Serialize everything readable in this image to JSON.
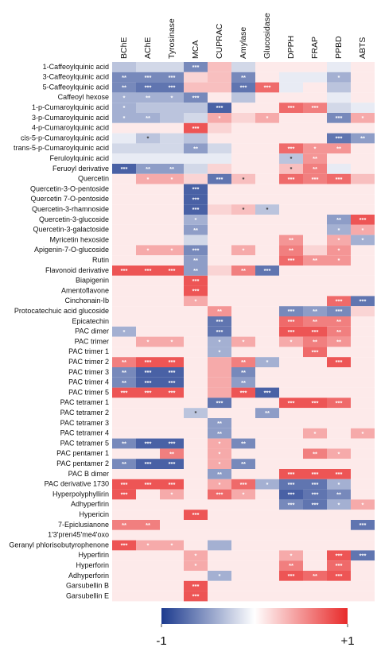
{
  "chart_data": {
    "type": "heatmap",
    "x": [
      "BChE",
      "AChE",
      "Tyrosinase",
      "MCA",
      "CUPRAC",
      "Amylase",
      "Glucosidase",
      "DPPH",
      "FRAP",
      "PPBD",
      "ABTS"
    ],
    "y": [
      "1-Caffeoylquinic acid",
      "3-Caffeoylquinic acid",
      "5-Caffeoylquinic acid",
      "Caffeoyl hexose",
      "1-p-Cumaroylquinic acid",
      "3-p-Cumaroylquinic acid",
      "4-p-Cumaroylquinic acid",
      "cis-5-p-Cumaroylquinic acid",
      "trans-5-p-Cumaroylquinic acid",
      "Feruloylquinic acid",
      "Feruoyl derivative",
      "Quercetin",
      "Quercetin-3-O-pentoside",
      "Quercetin 7-O-pentoside",
      "Quercetin-3-rhamnoside",
      "Quercetin-3-glucoside",
      "Quercetin-3-galactoside",
      "Myricetin hexoside",
      "Apigenin-7-O-glucoside",
      "Rutin",
      "Flavonoid derivative",
      "Biapigenin",
      "Amentoflavone",
      "Cinchonain-Ib",
      "Protocatechuic acid glucoside",
      "Epicatechin",
      "PAC dimer",
      "PAC trimer",
      "PAC trimer 1",
      "PAC trimer 2",
      "PAC trimer 3",
      "PAC trimer 4",
      "PAC trimer 5",
      "PAC tetramer 1",
      "PAC tetramer 2",
      "PAC tetramer 3",
      "PAC tetramer 4",
      "PAC tetramer 5",
      "PAC pentamer 1",
      "PAC pentamer 2",
      "PAC B dimer",
      "PAC derivative 1730",
      "Hyperpolyphyllirin",
      "Adhyperfirin",
      "Hypericin",
      "7-Epiclusianone",
      "1'3'pren45'me4'oxo",
      "Geranyl phlorisobutyrophenone",
      "Hyperfirin",
      "Hyperforin",
      "Adhyperforin",
      "Garsubellin B",
      "Garsubellin E"
    ],
    "values": [
      [
        -0.3,
        -0.2,
        -0.2,
        -0.6,
        0.3,
        -0.2,
        0.1,
        0.1,
        0.1,
        -0.1,
        0.1
      ],
      [
        -0.6,
        -0.6,
        -0.6,
        0.2,
        0.3,
        -0.6,
        0.1,
        -0.1,
        -0.1,
        -0.4,
        0.1
      ],
      [
        -0.6,
        -0.7,
        -0.7,
        0.3,
        0.3,
        -0.7,
        0.7,
        -0.1,
        0.1,
        -0.3,
        0.1
      ],
      [
        -0.4,
        -0.4,
        -0.4,
        -0.6,
        0.1,
        -0.3,
        0.1,
        0.1,
        0.1,
        -0.1,
        0.1
      ],
      [
        -0.4,
        -0.3,
        -0.3,
        -0.3,
        -0.8,
        0.1,
        0.1,
        0.7,
        0.6,
        -0.2,
        -0.1
      ],
      [
        -0.4,
        -0.4,
        -0.3,
        -0.2,
        0.4,
        0.2,
        0.4,
        0.1,
        0.1,
        -0.6,
        0.4
      ],
      [
        0.1,
        0.1,
        0.1,
        0.8,
        0.2,
        0.1,
        0.1,
        0.1,
        0.1,
        0.1,
        0.1
      ],
      [
        -0.1,
        -0.3,
        -0.2,
        -0.3,
        0.1,
        0.1,
        0.1,
        0.1,
        0.1,
        -0.7,
        -0.5
      ],
      [
        -0.2,
        -0.2,
        -0.2,
        -0.5,
        -0.2,
        0.1,
        0.1,
        0.7,
        0.5,
        0.5,
        0.1
      ],
      [
        -0.1,
        -0.1,
        -0.1,
        -0.1,
        -0.1,
        0.1,
        0.1,
        -0.3,
        0.5,
        0.1,
        0.1
      ],
      [
        -0.8,
        -0.5,
        -0.5,
        -0.2,
        0.2,
        0.1,
        0.1,
        0.3,
        0.6,
        -0.1,
        0.1
      ],
      [
        0.1,
        0.4,
        0.4,
        0.2,
        -0.7,
        0.3,
        0.1,
        0.7,
        0.6,
        0.7,
        0.3
      ],
      [
        0.1,
        0.1,
        0.1,
        -0.8,
        0.1,
        0.1,
        0.1,
        0.1,
        0.1,
        0.1,
        0.1
      ],
      [
        0.1,
        0.1,
        0.1,
        -0.8,
        0.1,
        0.1,
        0.1,
        0.1,
        0.1,
        0.1,
        0.1
      ],
      [
        0.1,
        0.1,
        0.1,
        -0.8,
        0.2,
        0.3,
        -0.3,
        0.1,
        0.1,
        0.1,
        0.1
      ],
      [
        0.1,
        0.1,
        0.1,
        -0.4,
        0.1,
        0.1,
        0.1,
        0.1,
        0.1,
        -0.5,
        0.8
      ],
      [
        0.1,
        0.1,
        0.1,
        -0.5,
        0.1,
        0.1,
        0.1,
        0.1,
        0.1,
        -0.4,
        0.4
      ],
      [
        0.1,
        0.1,
        0.1,
        -0.2,
        0.1,
        0.1,
        0.1,
        0.5,
        0.1,
        0.4,
        -0.4
      ],
      [
        0.1,
        0.4,
        0.4,
        -0.6,
        0.1,
        0.4,
        0.1,
        0.6,
        0.2,
        0.5,
        0.1
      ],
      [
        0.1,
        0.1,
        0.1,
        -0.5,
        0.1,
        0.1,
        0.1,
        0.7,
        0.5,
        0.5,
        0.1
      ],
      [
        0.8,
        0.8,
        0.8,
        -0.5,
        0.2,
        0.6,
        -0.7,
        0.1,
        0.1,
        0.1,
        0.1
      ],
      [
        0.1,
        0.1,
        0.1,
        0.8,
        0.1,
        0.1,
        0.1,
        0.1,
        0.1,
        0.1,
        0.1
      ],
      [
        0.1,
        0.1,
        0.1,
        0.8,
        0.1,
        0.1,
        0.1,
        0.1,
        0.1,
        0.1,
        0.1
      ],
      [
        0.1,
        0.1,
        0.1,
        0.4,
        0.1,
        0.1,
        0.1,
        0.1,
        0.1,
        0.7,
        -0.7
      ],
      [
        0.1,
        0.1,
        0.1,
        0.1,
        0.5,
        0.1,
        0.1,
        -0.6,
        -0.5,
        -0.6,
        0.2
      ],
      [
        0.1,
        0.1,
        0.1,
        0.1,
        -0.7,
        0.1,
        0.1,
        0.7,
        0.6,
        0.6,
        0.1
      ],
      [
        -0.4,
        0.1,
        0.1,
        0.1,
        -0.7,
        0.1,
        0.1,
        0.8,
        0.8,
        0.6,
        0.1
      ],
      [
        0.1,
        0.4,
        0.4,
        0.1,
        -0.4,
        0.4,
        0.1,
        0.4,
        0.6,
        0.5,
        0.1
      ],
      [
        0.1,
        0.1,
        0.1,
        0.1,
        -0.4,
        0.1,
        0.1,
        0.1,
        0.7,
        0.1,
        0.1
      ],
      [
        0.6,
        0.8,
        0.8,
        0.1,
        0.4,
        0.6,
        -0.4,
        0.1,
        0.1,
        0.8,
        0.1
      ],
      [
        -0.6,
        -0.8,
        -0.8,
        0.1,
        0.4,
        -0.6,
        0.1,
        0.1,
        0.1,
        0.1,
        0.1
      ],
      [
        -0.6,
        -0.8,
        -0.8,
        0.1,
        0.4,
        -0.5,
        0.1,
        0.1,
        0.1,
        0.1,
        0.1
      ],
      [
        0.8,
        0.8,
        0.8,
        0.1,
        0.4,
        0.8,
        -0.8,
        0.1,
        0.1,
        0.1,
        0.1
      ],
      [
        0.1,
        0.1,
        0.1,
        0.1,
        -0.7,
        0.1,
        0.1,
        0.8,
        0.8,
        0.7,
        0.1
      ],
      [
        0.1,
        0.1,
        0.1,
        -0.3,
        0.1,
        0.1,
        -0.5,
        0.1,
        0.1,
        0.1,
        0.1
      ],
      [
        0.1,
        0.1,
        0.1,
        0.1,
        -0.5,
        0.1,
        0.1,
        0.1,
        0.1,
        0.1,
        0.1
      ],
      [
        0.1,
        0.1,
        0.1,
        0.1,
        -0.5,
        0.1,
        0.1,
        0.1,
        0.4,
        0.1,
        0.4
      ],
      [
        -0.6,
        -0.8,
        -0.8,
        0.1,
        0.4,
        -0.6,
        0.1,
        0.1,
        0.1,
        0.1,
        0.1
      ],
      [
        0.1,
        0.1,
        0.6,
        0.1,
        0.4,
        0.1,
        0.1,
        0.1,
        0.6,
        0.4,
        0.1
      ],
      [
        -0.6,
        -0.8,
        -0.8,
        0.1,
        0.4,
        -0.6,
        0.1,
        0.1,
        0.1,
        0.1,
        0.1
      ],
      [
        0.1,
        0.1,
        0.1,
        0.1,
        -0.5,
        0.1,
        0.1,
        0.8,
        0.8,
        0.8,
        0.1
      ],
      [
        0.8,
        0.8,
        0.8,
        0.1,
        0.4,
        0.7,
        -0.4,
        -0.7,
        -0.7,
        -0.4,
        0.1
      ],
      [
        0.8,
        0.1,
        0.4,
        0.1,
        0.7,
        0.4,
        0.1,
        -0.8,
        -0.7,
        -0.6,
        0.1
      ],
      [
        0.1,
        0.1,
        0.1,
        0.1,
        0.1,
        0.1,
        0.1,
        -0.6,
        -0.7,
        -0.4,
        0.4
      ],
      [
        0.1,
        0.1,
        0.1,
        0.8,
        0.1,
        0.1,
        0.1,
        0.1,
        0.1,
        0.1,
        0.1
      ],
      [
        0.6,
        0.6,
        0.1,
        0.1,
        0.1,
        0.1,
        0.1,
        0.1,
        0.1,
        0.1,
        -0.7
      ],
      [
        0.1,
        0.1,
        0.1,
        0.1,
        0.1,
        0.1,
        0.1,
        0.1,
        0.1,
        0.1,
        0.1
      ],
      [
        0.8,
        0.4,
        0.4,
        0.1,
        -0.4,
        0.1,
        0.1,
        0.1,
        0.1,
        0.1,
        0.1
      ],
      [
        0.1,
        0.1,
        0.1,
        0.4,
        0.1,
        0.1,
        0.1,
        0.4,
        0.1,
        0.8,
        -0.7
      ],
      [
        0.1,
        0.1,
        0.1,
        0.4,
        0.1,
        0.1,
        0.1,
        0.6,
        0.1,
        0.7,
        0.1
      ],
      [
        0.1,
        0.1,
        0.1,
        0.1,
        -0.4,
        0.1,
        0.1,
        0.8,
        0.7,
        0.8,
        0.1
      ],
      [
        0.1,
        0.1,
        0.1,
        0.8,
        0.1,
        0.1,
        0.1,
        0.1,
        0.1,
        0.1,
        0.1
      ],
      [
        0.1,
        0.1,
        0.1,
        0.8,
        0.1,
        0.1,
        0.1,
        0.1,
        0.1,
        0.1,
        0.1
      ]
    ],
    "significance": [
      [
        null,
        null,
        null,
        "***",
        null,
        null,
        null,
        null,
        null,
        null,
        null
      ],
      [
        "**",
        "***",
        "***",
        null,
        null,
        "**",
        null,
        null,
        null,
        "*",
        null
      ],
      [
        "**",
        "***",
        "***",
        null,
        null,
        "***",
        "***",
        null,
        null,
        null,
        null
      ],
      [
        "*",
        "**",
        "*",
        "***",
        null,
        null,
        null,
        null,
        null,
        null,
        null
      ],
      [
        "*",
        null,
        null,
        null,
        "***",
        null,
        null,
        "***",
        "***",
        null,
        null
      ],
      [
        "*",
        "**",
        null,
        null,
        "*",
        null,
        "*",
        null,
        null,
        "***",
        "*"
      ],
      [
        null,
        null,
        null,
        "***",
        null,
        null,
        null,
        null,
        null,
        null,
        null
      ],
      [
        null,
        "*",
        null,
        null,
        null,
        null,
        null,
        null,
        null,
        "***",
        "**"
      ],
      [
        null,
        null,
        null,
        "**",
        null,
        null,
        null,
        "***",
        "*",
        "**",
        null
      ],
      [
        null,
        null,
        null,
        null,
        null,
        null,
        null,
        "*",
        "**",
        null,
        null
      ],
      [
        "***",
        "**",
        "**",
        null,
        null,
        null,
        null,
        "*",
        "**",
        null,
        null
      ],
      [
        null,
        "*",
        "*",
        null,
        "***",
        "*",
        null,
        "***",
        "***",
        "***",
        null
      ],
      [
        null,
        null,
        null,
        "***",
        null,
        null,
        null,
        null,
        null,
        null,
        null
      ],
      [
        null,
        null,
        null,
        "***",
        null,
        null,
        null,
        null,
        null,
        null,
        null
      ],
      [
        null,
        null,
        null,
        "***",
        null,
        "*",
        "*",
        null,
        null,
        null,
        null
      ],
      [
        null,
        null,
        null,
        "*",
        null,
        null,
        null,
        null,
        null,
        "**",
        "***"
      ],
      [
        null,
        null,
        null,
        "**",
        null,
        null,
        null,
        null,
        null,
        "*",
        "*"
      ],
      [
        null,
        null,
        null,
        null,
        null,
        null,
        null,
        "**",
        null,
        "*",
        "*"
      ],
      [
        null,
        "*",
        "*",
        "***",
        null,
        "*",
        null,
        "**",
        null,
        "*",
        null
      ],
      [
        null,
        null,
        null,
        "**",
        null,
        null,
        null,
        "***",
        "**",
        "*",
        null
      ],
      [
        "***",
        "***",
        "***",
        "**",
        null,
        "**",
        "***",
        null,
        null,
        null,
        null
      ],
      [
        null,
        null,
        null,
        "***",
        null,
        null,
        null,
        null,
        null,
        null,
        null
      ],
      [
        null,
        null,
        null,
        "***",
        null,
        null,
        null,
        null,
        null,
        null,
        null
      ],
      [
        null,
        null,
        null,
        "*",
        null,
        null,
        null,
        null,
        null,
        "***",
        "***"
      ],
      [
        null,
        null,
        null,
        null,
        "**",
        null,
        null,
        "***",
        "**",
        "***",
        null
      ],
      [
        null,
        null,
        null,
        null,
        "***",
        null,
        null,
        "***",
        "**",
        "**",
        null
      ],
      [
        "*",
        null,
        null,
        null,
        "***",
        null,
        null,
        "***",
        "***",
        "**",
        null
      ],
      [
        null,
        "*",
        "*",
        null,
        "*",
        "*",
        null,
        "*",
        "**",
        "**",
        null
      ],
      [
        null,
        null,
        null,
        null,
        "*",
        null,
        null,
        null,
        "***",
        null,
        null
      ],
      [
        "**",
        "***",
        "***",
        null,
        null,
        "**",
        "*",
        null,
        null,
        "***",
        null
      ],
      [
        "**",
        "***",
        "***",
        null,
        null,
        "**",
        null,
        null,
        null,
        null,
        null
      ],
      [
        "**",
        "***",
        "***",
        null,
        null,
        "**",
        null,
        null,
        null,
        null,
        null
      ],
      [
        "***",
        "***",
        "***",
        null,
        null,
        "***",
        "***",
        null,
        null,
        null,
        null
      ],
      [
        null,
        null,
        null,
        null,
        "***",
        null,
        null,
        "***",
        "***",
        "***",
        null
      ],
      [
        null,
        null,
        null,
        "*",
        null,
        null,
        "**",
        null,
        null,
        null,
        null
      ],
      [
        null,
        null,
        null,
        null,
        "**",
        null,
        null,
        null,
        null,
        null,
        null
      ],
      [
        null,
        null,
        null,
        null,
        "**",
        null,
        null,
        null,
        "*",
        null,
        "*"
      ],
      [
        "**",
        "***",
        "***",
        null,
        "*",
        "**",
        null,
        null,
        null,
        null,
        null
      ],
      [
        null,
        null,
        "**",
        null,
        "*",
        null,
        null,
        null,
        "**",
        "*",
        null
      ],
      [
        "**",
        "***",
        "***",
        null,
        "*",
        "**",
        null,
        null,
        null,
        null,
        null
      ],
      [
        null,
        null,
        null,
        null,
        "**",
        null,
        null,
        "***",
        "***",
        "***",
        null
      ],
      [
        "***",
        "***",
        "***",
        null,
        "*",
        "***",
        "*",
        "***",
        "***",
        "*",
        null
      ],
      [
        "***",
        null,
        "*",
        null,
        "***",
        "*",
        null,
        "***",
        "***",
        "**",
        null
      ],
      [
        null,
        null,
        null,
        null,
        null,
        null,
        null,
        "***",
        "***",
        "*",
        "*"
      ],
      [
        null,
        null,
        null,
        "***",
        null,
        null,
        null,
        null,
        null,
        null,
        null
      ],
      [
        "**",
        "**",
        null,
        null,
        null,
        null,
        null,
        null,
        null,
        null,
        "***"
      ],
      [
        null,
        null,
        null,
        null,
        null,
        null,
        null,
        null,
        null,
        null,
        null
      ],
      [
        "***",
        "*",
        "*",
        null,
        null,
        null,
        null,
        null,
        null,
        null,
        null
      ],
      [
        null,
        null,
        null,
        "*",
        null,
        null,
        null,
        "*",
        null,
        "***",
        "***"
      ],
      [
        null,
        null,
        null,
        "*",
        null,
        null,
        null,
        "**",
        null,
        "***",
        null
      ],
      [
        null,
        null,
        null,
        null,
        "*",
        null,
        null,
        "***",
        "**",
        "***",
        null
      ],
      [
        null,
        null,
        null,
        "***",
        null,
        null,
        null,
        null,
        null,
        null,
        null
      ],
      [
        null,
        null,
        null,
        "***",
        null,
        null,
        null,
        null,
        null,
        null,
        null
      ]
    ],
    "colors": [
      "#1c3a8e",
      "#ffffff",
      "#e82a2a"
    ],
    "colorbar": {
      "lim": [
        -1,
        1
      ],
      "ticks": [
        {
          "value": -1,
          "label": "-1"
        },
        {
          "value": 1,
          "label": "+1"
        }
      ]
    }
  }
}
